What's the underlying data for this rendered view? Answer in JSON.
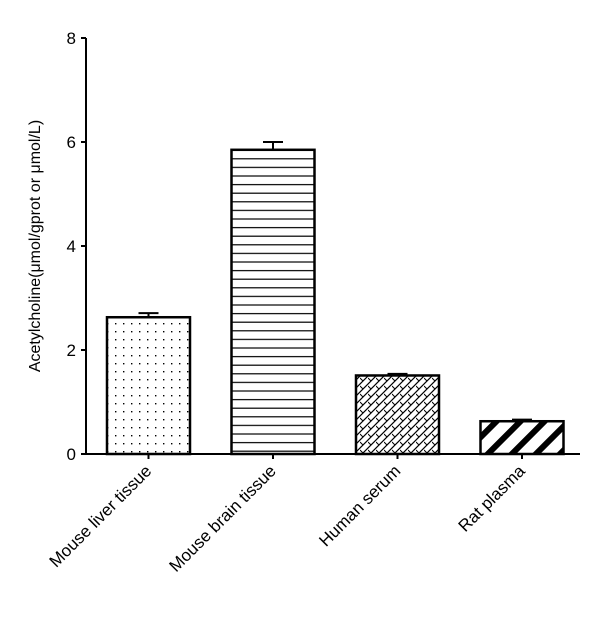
{
  "chart_data": {
    "type": "bar",
    "title": "",
    "xlabel": "",
    "ylabel": "Acetylcholine(μmol/gprot or μmol/L)",
    "ylim": [
      0,
      8
    ],
    "yticks": [
      "0",
      "2",
      "4",
      "6",
      "8"
    ],
    "categories": [
      "Mouse liver tissue",
      "Mouse brain tissue",
      "Human serum",
      "Rat plasma"
    ],
    "values": [
      2.63,
      5.85,
      1.51,
      0.63
    ],
    "error_upper": [
      2.71,
      6.0,
      1.54,
      0.66
    ],
    "patterns": [
      "dots",
      "horizontal-lines",
      "crosshatch-diagonal",
      "wide-diagonal"
    ],
    "grid": false,
    "colors": {
      "stroke": "#000000",
      "fill": "#ffffff"
    }
  }
}
